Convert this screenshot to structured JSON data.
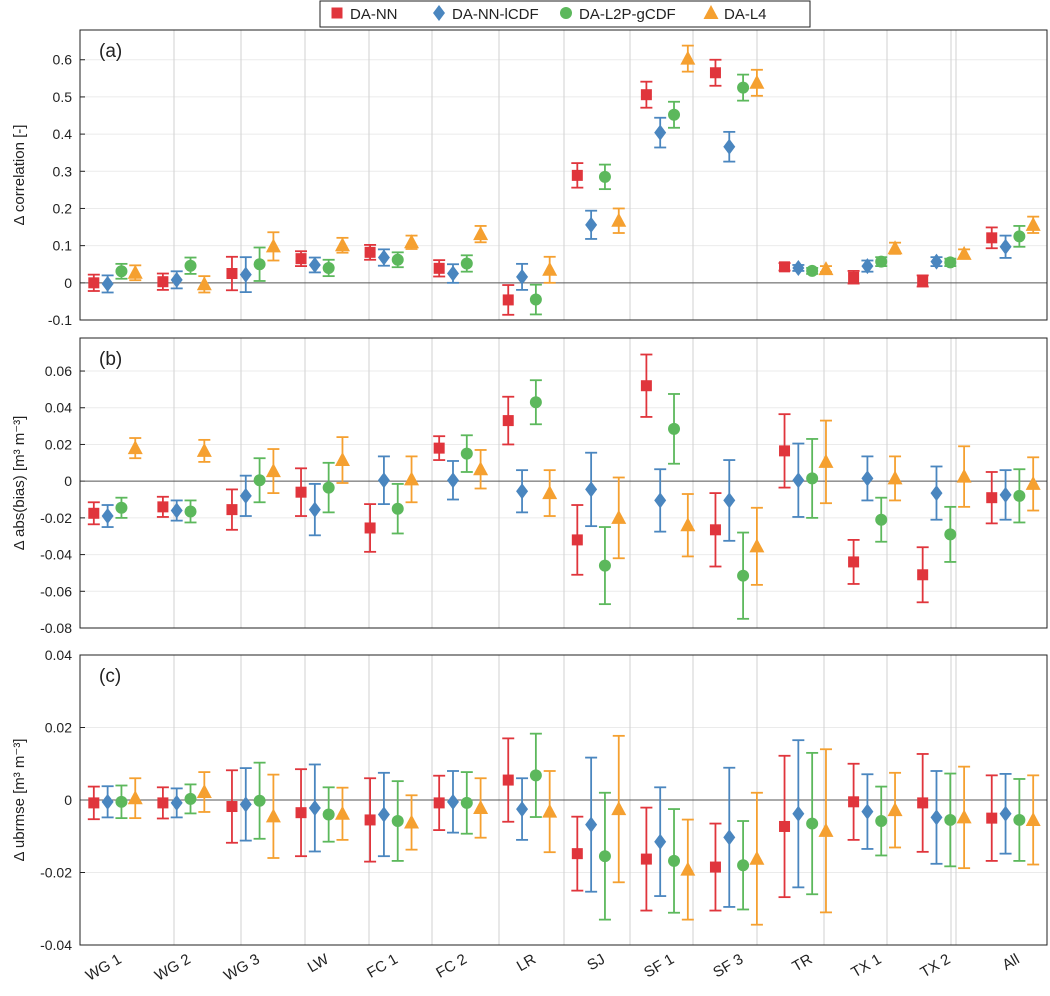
{
  "legend": [
    {
      "name": "DA-NN",
      "color": "#e0353c",
      "marker": "square"
    },
    {
      "name": "DA-NN-lCDF",
      "color": "#4a86bf",
      "marker": "diamond"
    },
    {
      "name": "DA-L2P-gCDF",
      "color": "#5cb85c",
      "marker": "circle"
    },
    {
      "name": "DA-L4",
      "color": "#f5a030",
      "marker": "triangle"
    }
  ],
  "chart_data": [
    {
      "type": "errorbar",
      "panel": "(a)",
      "ylabel": "Δ correlation [-]",
      "ylim": [
        -0.1,
        0.68
      ],
      "yticks": [
        -0.1,
        0,
        0.1,
        0.2,
        0.3,
        0.4,
        0.5,
        0.6
      ],
      "ytick_labels": [
        "-0.1",
        "0",
        "0.1",
        "0.2",
        "0.3",
        "0.4",
        "0.5",
        "0.6"
      ],
      "categories": [
        "WG 1",
        "WG 2",
        "WG 3",
        "LW",
        "FC 1",
        "FC 2",
        "LR",
        "SJ",
        "SF 1",
        "SF 3",
        "TR",
        "TX 1",
        "TX 2",
        "All"
      ],
      "series": [
        {
          "name": "DA-NN",
          "values": [
            0.0,
            0.003,
            0.025,
            0.065,
            0.082,
            0.039,
            -0.046,
            0.289,
            0.506,
            0.565,
            0.043,
            0.015,
            0.005,
            0.121
          ],
          "err": [
            0.022,
            0.022,
            0.045,
            0.02,
            0.02,
            0.022,
            0.04,
            0.033,
            0.035,
            0.035,
            0.01,
            0.017,
            0.015,
            0.028
          ]
        },
        {
          "name": "DA-NN-lCDF",
          "values": [
            -0.003,
            0.008,
            0.022,
            0.048,
            0.068,
            0.025,
            0.016,
            0.156,
            0.404,
            0.366,
            0.04,
            0.045,
            0.057,
            0.097
          ],
          "err": [
            0.023,
            0.023,
            0.047,
            0.02,
            0.022,
            0.025,
            0.035,
            0.038,
            0.04,
            0.04,
            0.008,
            0.015,
            0.012,
            0.03
          ]
        },
        {
          "name": "DA-L2P-gCDF",
          "values": [
            0.031,
            0.046,
            0.05,
            0.04,
            0.062,
            0.052,
            -0.045,
            0.285,
            0.452,
            0.525,
            0.032,
            0.057,
            0.055,
            0.125
          ],
          "err": [
            0.02,
            0.022,
            0.045,
            0.022,
            0.02,
            0.022,
            0.04,
            0.033,
            0.035,
            0.035,
            0.008,
            0.012,
            0.01,
            0.028
          ]
        },
        {
          "name": "DA-L4",
          "values": [
            0.027,
            -0.004,
            0.098,
            0.101,
            0.109,
            0.131,
            0.035,
            0.167,
            0.603,
            0.538,
            0.037,
            0.093,
            0.078,
            0.156
          ],
          "err": [
            0.02,
            0.022,
            0.038,
            0.02,
            0.018,
            0.022,
            0.035,
            0.033,
            0.035,
            0.035,
            0.008,
            0.015,
            0.012,
            0.022
          ]
        }
      ]
    },
    {
      "type": "errorbar",
      "panel": "(b)",
      "ylabel": "Δ abs(bias) [m³ m⁻³]",
      "ylim": [
        -0.08,
        0.078
      ],
      "yticks": [
        -0.08,
        -0.06,
        -0.04,
        -0.02,
        0,
        0.02,
        0.04,
        0.06
      ],
      "ytick_labels": [
        "-0.08",
        "-0.06",
        "-0.04",
        "-0.02",
        "0",
        "0.02",
        "0.04",
        "0.06"
      ],
      "categories": [
        "WG 1",
        "WG 2",
        "WG 3",
        "LW",
        "FC 1",
        "FC 2",
        "LR",
        "SJ",
        "SF 1",
        "SF 3",
        "TR",
        "TX 1",
        "TX 2",
        "All"
      ],
      "series": [
        {
          "name": "DA-NN",
          "values": [
            -0.0175,
            -0.014,
            -0.0155,
            -0.006,
            -0.0255,
            0.018,
            0.033,
            -0.032,
            0.052,
            -0.0265,
            0.0165,
            -0.044,
            -0.051,
            -0.009
          ],
          "err": [
            0.006,
            0.0055,
            0.011,
            0.013,
            0.013,
            0.0065,
            0.013,
            0.019,
            0.017,
            0.02,
            0.02,
            0.012,
            0.015,
            0.014
          ]
        },
        {
          "name": "DA-NN-lCDF",
          "values": [
            -0.019,
            -0.016,
            -0.008,
            -0.0155,
            0.0005,
            0.0005,
            -0.0055,
            -0.0045,
            -0.0105,
            -0.0105,
            0.0005,
            0.0015,
            -0.0065,
            -0.0075
          ],
          "err": [
            0.006,
            0.0055,
            0.011,
            0.014,
            0.013,
            0.0105,
            0.0115,
            0.02,
            0.017,
            0.022,
            0.02,
            0.012,
            0.0145,
            0.0135
          ]
        },
        {
          "name": "DA-L2P-gCDF",
          "values": [
            -0.0145,
            -0.0165,
            0.0005,
            -0.0035,
            -0.015,
            0.015,
            0.043,
            -0.046,
            0.0285,
            -0.0515,
            0.0015,
            -0.021,
            -0.029,
            -0.008
          ],
          "err": [
            0.0055,
            0.006,
            0.012,
            0.0135,
            0.0135,
            0.01,
            0.012,
            0.021,
            0.019,
            0.0235,
            0.0215,
            0.012,
            0.015,
            0.0145
          ]
        },
        {
          "name": "DA-L4",
          "values": [
            0.018,
            0.0165,
            0.0055,
            0.0115,
            0.001,
            0.0065,
            -0.0065,
            -0.02,
            -0.024,
            -0.0355,
            0.0105,
            0.0015,
            0.0025,
            -0.0015
          ],
          "err": [
            0.0055,
            0.006,
            0.012,
            0.0125,
            0.0125,
            0.0105,
            0.0125,
            0.022,
            0.017,
            0.021,
            0.0225,
            0.012,
            0.0165,
            0.0145
          ]
        }
      ]
    },
    {
      "type": "errorbar",
      "panel": "(c)",
      "ylabel": "Δ ubrmse [m³ m⁻³]",
      "ylim": [
        -0.04,
        0.04
      ],
      "yticks": [
        -0.04,
        -0.02,
        0,
        0.02,
        0.04
      ],
      "ytick_labels": [
        "-0.04",
        "-0.02",
        "0",
        "0.02",
        "0.04"
      ],
      "categories": [
        "WG 1",
        "WG 2",
        "WG 3",
        "LW",
        "FC 1",
        "FC 2",
        "LR",
        "SJ",
        "SF 1",
        "SF 3",
        "TR",
        "TX 1",
        "TX 2",
        "All"
      ],
      "series": [
        {
          "name": "DA-NN",
          "values": [
            -0.0008,
            -0.0008,
            -0.0018,
            -0.0035,
            -0.0055,
            -0.0008,
            0.0055,
            -0.0148,
            -0.0163,
            -0.0185,
            -0.0073,
            -0.0005,
            -0.0008,
            -0.005
          ],
          "err": [
            0.0045,
            0.0043,
            0.01,
            0.012,
            0.0115,
            0.0075,
            0.0115,
            0.0102,
            0.0142,
            0.012,
            0.0195,
            0.0105,
            0.0135,
            0.0118
          ]
        },
        {
          "name": "DA-NN-lCDF",
          "values": [
            -0.0005,
            -0.0008,
            -0.0012,
            -0.0022,
            -0.004,
            -0.0005,
            -0.0025,
            -0.0068,
            -0.0115,
            -0.0103,
            -0.0038,
            -0.0032,
            -0.0048,
            -0.0038
          ],
          "err": [
            0.0043,
            0.004,
            0.01,
            0.012,
            0.0115,
            0.0085,
            0.0085,
            0.0185,
            0.015,
            0.0192,
            0.0203,
            0.0103,
            0.0128,
            0.011
          ]
        },
        {
          "name": "DA-L2P-gCDF",
          "values": [
            -0.0005,
            0.0003,
            -0.0002,
            -0.004,
            -0.0058,
            -0.0008,
            0.0068,
            -0.0155,
            -0.0168,
            -0.018,
            -0.0065,
            -0.0058,
            -0.0055,
            -0.0055
          ],
          "err": [
            0.0045,
            0.004,
            0.0105,
            0.0075,
            0.011,
            0.0085,
            0.0115,
            0.0175,
            0.0143,
            0.0122,
            0.0195,
            0.0095,
            0.0128,
            0.0113
          ]
        },
        {
          "name": "DA-L4",
          "values": [
            0.0005,
            0.0022,
            -0.0045,
            -0.0038,
            -0.0062,
            -0.0022,
            -0.0032,
            -0.0025,
            -0.0192,
            -0.0162,
            -0.0085,
            -0.0028,
            -0.0048,
            -0.0055
          ],
          "err": [
            0.0055,
            0.0055,
            0.0115,
            0.0072,
            0.0075,
            0.0082,
            0.0112,
            0.0202,
            0.0138,
            0.0182,
            0.0225,
            0.0103,
            0.014,
            0.0123
          ]
        }
      ]
    }
  ]
}
